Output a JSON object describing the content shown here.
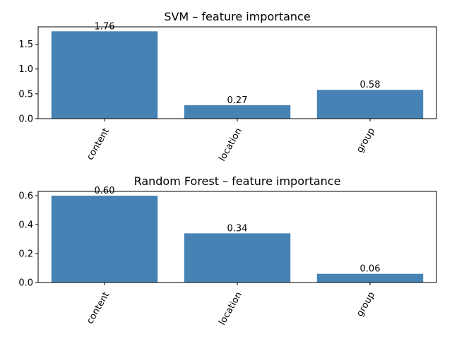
{
  "chart_data": [
    {
      "type": "bar",
      "title": "SVM – feature importance",
      "categories": [
        "content",
        "location",
        "group"
      ],
      "values": [
        1.76,
        0.27,
        0.58
      ],
      "data_labels": [
        "1.76",
        "0.27",
        "0.58"
      ],
      "ylim": [
        0,
        1.85
      ],
      "yticks": [
        0.0,
        0.5,
        1.0,
        1.5
      ],
      "ytick_labels": [
        "0.0",
        "0.5",
        "1.0",
        "1.5"
      ],
      "xlabel": "",
      "ylabel": "",
      "grid": false,
      "bar_color": "#4682b4"
    },
    {
      "type": "bar",
      "title": "Random Forest – feature importance",
      "categories": [
        "content",
        "location",
        "group"
      ],
      "values": [
        0.6,
        0.34,
        0.06
      ],
      "data_labels": [
        "0.60",
        "0.34",
        "0.06"
      ],
      "ylim": [
        0,
        0.63
      ],
      "yticks": [
        0.0,
        0.2,
        0.4,
        0.6
      ],
      "ytick_labels": [
        "0.0",
        "0.2",
        "0.4",
        "0.6"
      ],
      "xlabel": "",
      "ylabel": "",
      "grid": false,
      "bar_color": "#4682b4"
    }
  ]
}
